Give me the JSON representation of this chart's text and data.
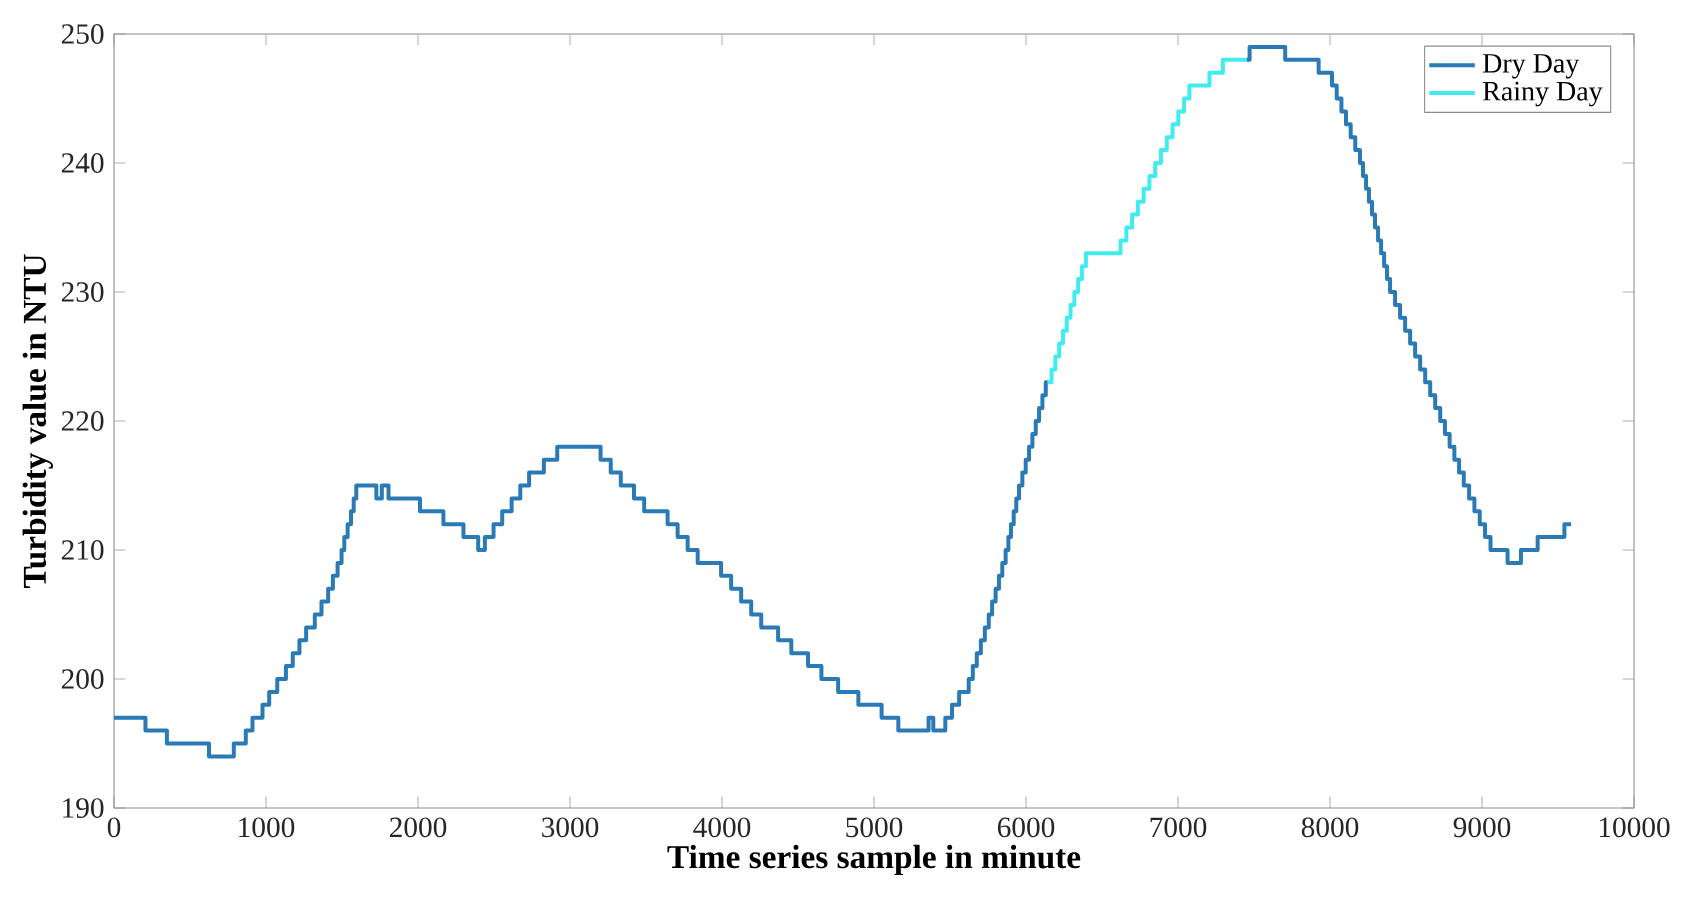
{
  "chart_data": {
    "type": "step",
    "xlabel": "Time series sample in minute",
    "ylabel": "Turbidity value in NTU",
    "xlim": [
      0,
      10000
    ],
    "ylim": [
      190,
      250
    ],
    "xticks": [
      0,
      1000,
      2000,
      3000,
      4000,
      5000,
      6000,
      7000,
      8000,
      9000,
      10000
    ],
    "yticks": [
      190,
      200,
      210,
      220,
      230,
      240,
      250
    ],
    "grid": false,
    "legend": "top right",
    "line_style": "solid",
    "marker": "none",
    "series": [
      {
        "name": "Dry Day",
        "color": "#2a7ab5",
        "x": [
          0,
          207,
          348,
          625,
          788,
          867,
          911,
          977,
          1021,
          1074,
          1131,
          1176,
          1220,
          1264,
          1321,
          1365,
          1409,
          1440,
          1471,
          1497,
          1515,
          1537,
          1559,
          1577,
          1594,
          1726,
          1762,
          1806,
          2013,
          2167,
          2299,
          2396,
          2440,
          2497,
          2554,
          2616,
          2673,
          2731,
          2828,
          2916,
          3201,
          3268,
          3334,
          3421,
          3488,
          3642,
          3708,
          3774,
          3840,
          3994,
          4060,
          4126,
          4192,
          4258,
          4369,
          4456,
          4566,
          4654,
          4764,
          4897,
          5050,
          5160,
          5359,
          5390,
          5469,
          5513,
          5560,
          5623,
          5650,
          5676,
          5703,
          5729,
          5755,
          5777,
          5800,
          5822,
          5844,
          5866,
          5884,
          5901,
          5919,
          5936,
          5954,
          5976,
          5998,
          6020,
          6042,
          6064,
          6086,
          6108,
          6130,
          6143,
          6300,
          7450,
          7471,
          7705,
          7925,
          8013,
          8044,
          8075,
          8105,
          8136,
          8166,
          8197,
          8217,
          8237,
          8256,
          8276,
          8296,
          8316,
          8336,
          8356,
          8375,
          8395,
          8428,
          8461,
          8494,
          8527,
          8560,
          8593,
          8626,
          8659,
          8692,
          8725,
          8756,
          8787,
          8818,
          8849,
          8880,
          8915,
          8950,
          8985,
          9020,
          9056,
          9168,
          9256,
          9366,
          9542,
          9586
        ],
        "values": [
          197,
          196,
          195,
          194,
          195,
          196,
          197,
          198,
          199,
          200,
          201,
          202,
          203,
          204,
          205,
          206,
          207,
          208,
          209,
          210,
          211,
          212,
          213,
          214,
          215,
          214,
          215,
          214,
          213,
          212,
          211,
          210,
          211,
          212,
          213,
          214,
          215,
          216,
          217,
          218,
          217,
          216,
          215,
          214,
          213,
          212,
          211,
          210,
          209,
          208,
          207,
          206,
          205,
          204,
          203,
          202,
          201,
          200,
          199,
          198,
          197,
          196,
          197,
          196,
          197,
          198,
          199,
          200,
          201,
          202,
          203,
          204,
          205,
          206,
          207,
          208,
          209,
          210,
          211,
          212,
          213,
          214,
          215,
          216,
          217,
          218,
          219,
          220,
          221,
          222,
          223,
          223,
          null,
          248,
          249,
          248,
          247,
          246,
          245,
          244,
          243,
          242,
          241,
          240,
          239,
          238,
          237,
          236,
          235,
          234,
          233,
          232,
          231,
          230,
          229,
          228,
          227,
          226,
          225,
          224,
          223,
          222,
          221,
          220,
          219,
          218,
          217,
          216,
          215,
          214,
          213,
          212,
          211,
          210,
          209,
          210,
          211,
          212,
          212
        ]
      },
      {
        "name": "Rainy Day",
        "color": "#40ecf0",
        "x": [
          6143,
          6168,
          6193,
          6218,
          6243,
          6268,
          6293,
          6318,
          6343,
          6368,
          6394,
          6622,
          6660,
          6698,
          6736,
          6774,
          6812,
          6850,
          6888,
          6926,
          6964,
          7002,
          7040,
          7075,
          7207,
          7295,
          7450
        ],
        "values": [
          223,
          224,
          225,
          226,
          227,
          228,
          229,
          230,
          231,
          232,
          233,
          234,
          235,
          236,
          237,
          238,
          239,
          240,
          241,
          242,
          243,
          244,
          245,
          246,
          247,
          248,
          248
        ]
      }
    ]
  }
}
